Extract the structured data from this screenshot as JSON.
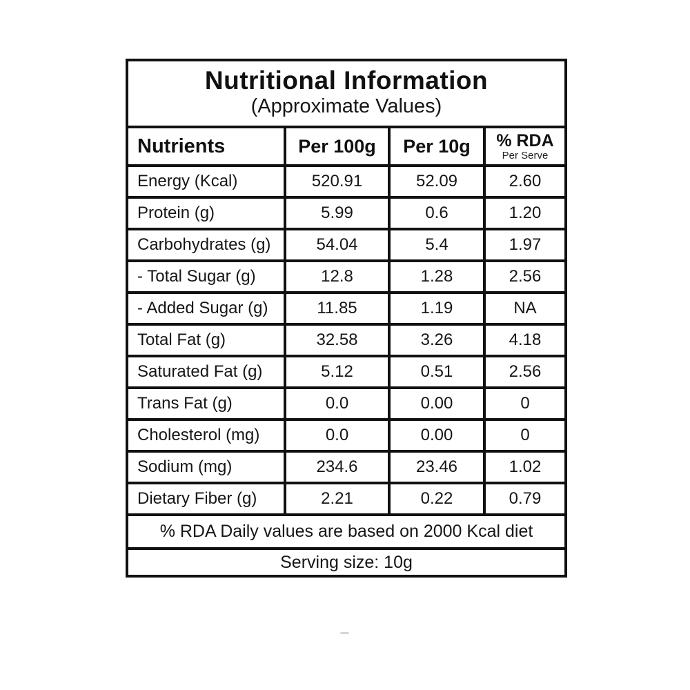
{
  "table": {
    "title": "Nutritional Information",
    "subtitle": "(Approximate Values)",
    "columns": [
      "Nutrients",
      "Per 100g",
      "Per 10g",
      "% RDA"
    ],
    "rda_subnote": "Per Serve",
    "rows": [
      {
        "nutrient": "Energy (Kcal)",
        "per_100g": "520.91",
        "per_10g": "52.09",
        "rda": "2.60"
      },
      {
        "nutrient": "Protein (g)",
        "per_100g": "5.99",
        "per_10g": "0.6",
        "rda": "1.20"
      },
      {
        "nutrient": "Carbohydrates (g)",
        "per_100g": "54.04",
        "per_10g": "5.4",
        "rda": "1.97"
      },
      {
        "nutrient": "- Total Sugar (g)",
        "per_100g": "12.8",
        "per_10g": "1.28",
        "rda": "2.56"
      },
      {
        "nutrient": "- Added Sugar (g)",
        "per_100g": "11.85",
        "per_10g": "1.19",
        "rda": "NA"
      },
      {
        "nutrient": "Total Fat (g)",
        "per_100g": "32.58",
        "per_10g": "3.26",
        "rda": "4.18"
      },
      {
        "nutrient": "Saturated Fat (g)",
        "per_100g": "5.12",
        "per_10g": "0.51",
        "rda": "2.56"
      },
      {
        "nutrient": "Trans Fat (g)",
        "per_100g": "0.0",
        "per_10g": "0.00",
        "rda": "0"
      },
      {
        "nutrient": "Cholesterol (mg)",
        "per_100g": "0.0",
        "per_10g": "0.00",
        "rda": "0"
      },
      {
        "nutrient": "Sodium (mg)",
        "per_100g": "234.6",
        "per_10g": "23.46",
        "rda": "1.02"
      },
      {
        "nutrient": "Dietary Fiber (g)",
        "per_100g": "2.21",
        "per_10g": "0.22",
        "rda": "0.79"
      }
    ],
    "footnotes": [
      "% RDA Daily values are based on 2000 Kcal diet",
      "Serving size: 10g"
    ]
  },
  "colors": {
    "border": "#111111",
    "text": "#161616",
    "background": "#ffffff"
  }
}
